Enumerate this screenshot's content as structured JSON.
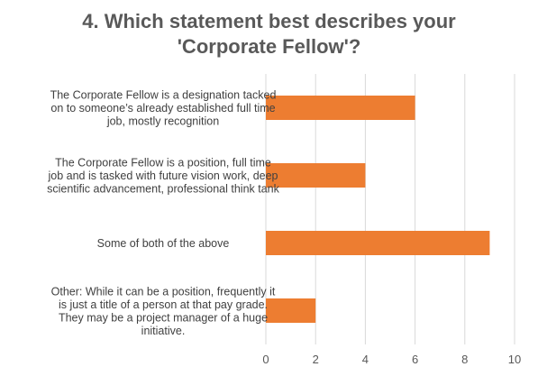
{
  "chart_data": {
    "type": "bar",
    "orientation": "horizontal",
    "title_lines": [
      "4. Which statement best describes your",
      "'Corporate Fellow'?"
    ],
    "categories": [
      [
        "The Corporate Fellow is a designation tacked",
        "on to someone’s already established full time",
        "job, mostly recognition"
      ],
      [
        "The Corporate Fellow is a position, full time",
        "job and is tasked with future vision work, deep",
        "scientific advancement, professional think tank"
      ],
      [
        "Some of both of the above"
      ],
      [
        "Other: While it can be a position, frequently it",
        "is just a title of a person at that pay grade.",
        "They may be a project manager of a huge",
        "initiative."
      ]
    ],
    "values": [
      6,
      4,
      9,
      2
    ],
    "xlim": [
      0,
      10
    ],
    "xticks": [
      0,
      2,
      4,
      6,
      8,
      10
    ],
    "grid": "vertical",
    "legend": "none",
    "bar_color": "#ED7D31",
    "grid_color": "#D9D9D9"
  }
}
